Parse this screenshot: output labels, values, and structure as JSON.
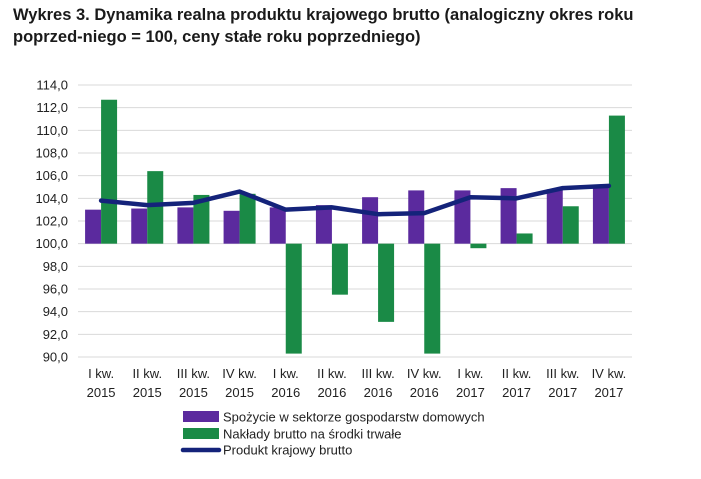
{
  "title": "Wykres 3. Dynamika realna produktu krajowego brutto (analogiczny okres roku poprzed-niego = 100, ceny stałe roku poprzedniego)",
  "colors": {
    "consumption": "#5b2a9e",
    "investment": "#1a8a46",
    "gdp": "#14237a",
    "grid": "#d9d9d9"
  },
  "chart_data": {
    "type": "bar",
    "title": "Wykres 3. Dynamika realna produktu krajowego brutto (analogiczny okres roku poprzedniego = 100, ceny stałe roku poprzedniego)",
    "xlabel": "",
    "ylabel": "",
    "ylim": [
      90,
      114
    ],
    "baseline": 100,
    "y_ticks": [
      "114,0",
      "112,0",
      "110,0",
      "108,0",
      "106,0",
      "104,0",
      "102,0",
      "100,0",
      "98,0",
      "96,0",
      "94,0",
      "92,0",
      "90,0"
    ],
    "y_tick_values": [
      114,
      112,
      110,
      108,
      106,
      104,
      102,
      100,
      98,
      96,
      94,
      92,
      90
    ],
    "categories": [
      {
        "q": "I kw.",
        "year": "2015"
      },
      {
        "q": "II kw.",
        "year": "2015"
      },
      {
        "q": "III kw.",
        "year": "2015"
      },
      {
        "q": "IV kw.",
        "year": "2015"
      },
      {
        "q": "I kw.",
        "year": "2016"
      },
      {
        "q": "II kw.",
        "year": "2016"
      },
      {
        "q": "III kw.",
        "year": "2016"
      },
      {
        "q": "IV kw.",
        "year": "2016"
      },
      {
        "q": "I kw.",
        "year": "2017"
      },
      {
        "q": "II kw.",
        "year": "2017"
      },
      {
        "q": "III kw.",
        "year": "2017"
      },
      {
        "q": "IV kw.",
        "year": "2017"
      }
    ],
    "series": [
      {
        "name": "Spożycie w sektorze gospodarstw domowych",
        "kind": "bar",
        "values": [
          103.0,
          103.1,
          103.2,
          102.9,
          103.2,
          103.4,
          104.1,
          104.7,
          104.7,
          104.9,
          104.8,
          105.1
        ]
      },
      {
        "name": "Nakłady brutto na środki trwałe",
        "kind": "bar",
        "values": [
          112.7,
          106.4,
          104.3,
          104.4,
          90.3,
          95.5,
          93.1,
          90.3,
          99.6,
          100.9,
          103.3,
          111.3
        ]
      },
      {
        "name": "Produkt krajowy brutto",
        "kind": "line",
        "values": [
          103.8,
          103.4,
          103.6,
          104.6,
          103.0,
          103.2,
          102.6,
          102.7,
          104.1,
          104.0,
          104.9,
          105.1
        ]
      }
    ],
    "legend_position": "bottom"
  }
}
